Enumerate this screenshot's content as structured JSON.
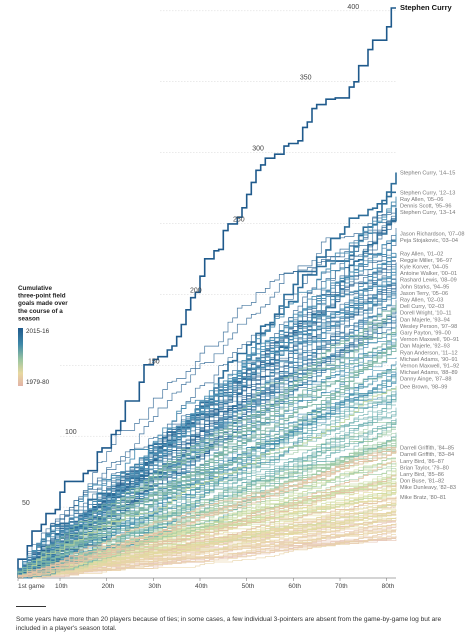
{
  "chart_data": {
    "type": "line",
    "title": "",
    "xlabel": "",
    "ylabel": "",
    "xlim": [
      1,
      82
    ],
    "ylim": [
      0,
      402
    ],
    "x_ticks": [
      {
        "value": 1,
        "label": "1st game"
      },
      {
        "value": 10,
        "label": "10th"
      },
      {
        "value": 20,
        "label": "20th"
      },
      {
        "value": 30,
        "label": "30th"
      },
      {
        "value": 40,
        "label": "40th"
      },
      {
        "value": 50,
        "label": "50th"
      },
      {
        "value": 60,
        "label": "60th"
      },
      {
        "value": 70,
        "label": "70th"
      },
      {
        "value": 80,
        "label": "80th"
      }
    ],
    "y_ticks": [
      50,
      100,
      150,
      200,
      250,
      300,
      350,
      400
    ],
    "grid": true,
    "legend": {
      "placement": "left",
      "title": "Cumulative three-point field goals made over the course of a season",
      "high_label": "2015-16",
      "low_label": "1979-80",
      "colors": [
        "#1f5a8c",
        "#3e88a8",
        "#9cc6a0",
        "#e8d8a0",
        "#e2b2a6"
      ]
    },
    "background_band_color": "#2e6e9a",
    "series": [
      {
        "name": "Stephen Curry",
        "final": 402,
        "highlight": true,
        "color": "#1f5a8c"
      },
      {
        "name": "Stephen Curry, '14–15",
        "final": 286,
        "highlight": true,
        "color": "#2e6e9a"
      },
      {
        "name": "Stephen Curry, '12–13",
        "final": 272,
        "highlight": true,
        "color": "#2e6e9a"
      },
      {
        "name": "Ray Allen, '05–06",
        "final": 269
      },
      {
        "name": "Dennis Scott, '95–96",
        "final": 267
      },
      {
        "name": "Stephen Curry, '13–14",
        "final": 261,
        "highlight": true,
        "color": "#2e6e9a"
      },
      {
        "name": "Jason Richardson, '07–08",
        "final": 243
      },
      {
        "name": "Peja Stojakovic, '03–04",
        "final": 240
      },
      {
        "name": "Ray Allen, '01–02",
        "final": 229
      },
      {
        "name": "Reggie Miller, '96–97",
        "final": 229
      },
      {
        "name": "Kyle Korver, '04–05",
        "final": 226
      },
      {
        "name": "Antoine Walker, '00–01",
        "final": 221
      },
      {
        "name": "Rashard Lewis, '08–09",
        "final": 220
      },
      {
        "name": "John Starks, '94–95",
        "final": 217
      },
      {
        "name": "Jason Terry, '05–06",
        "final": 211
      },
      {
        "name": "Ray Allen, '02–03",
        "final": 201
      },
      {
        "name": "Dell Curry, '02–03",
        "final": 201
      },
      {
        "name": "Dorell Wright, '10–11",
        "final": 194
      },
      {
        "name": "Dan Majerle, '93–94",
        "final": 192
      },
      {
        "name": "Wesley Person, '97–98",
        "final": 192
      },
      {
        "name": "Gary Payton, '99–00",
        "final": 177
      },
      {
        "name": "Vernon Maxwell, '90–91",
        "final": 172
      },
      {
        "name": "Dan Majerle, '92–93",
        "final": 167
      },
      {
        "name": "Ryan Anderson, '11–12",
        "final": 166
      },
      {
        "name": "Michael Adams, '90–91",
        "final": 167
      },
      {
        "name": "Vernon Maxwell, '91–92",
        "final": 162
      },
      {
        "name": "Michael Adams, '88–89",
        "final": 166
      },
      {
        "name": "Danny Ainge, '87–88",
        "final": 148
      },
      {
        "name": "Dee Brown, '98–99",
        "final": 135
      },
      {
        "name": "Darrell Griffith, '84–85",
        "final": 92
      },
      {
        "name": "Darrell Griffith, '83–84",
        "final": 91
      },
      {
        "name": "Larry Bird, '86–87",
        "final": 90
      },
      {
        "name": "Brian Taylor, '79–80",
        "final": 90
      },
      {
        "name": "Larry Bird, '85–86",
        "final": 82
      },
      {
        "name": "Don Buse, '81–82",
        "final": 73
      },
      {
        "name": "Mike Dunleavy, '82–83",
        "final": 67
      },
      {
        "name": "Mike Bratz, '80–81",
        "final": 57
      }
    ]
  },
  "footnote": "Some years have more than 20 players because of ties; in some cases, a few individual 3-pointers are absent from the game-by-game log but are included in a player's season total."
}
